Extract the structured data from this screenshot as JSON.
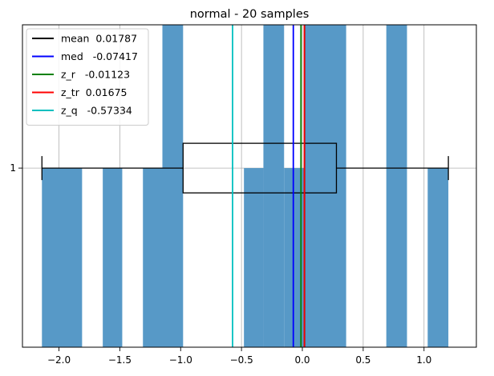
{
  "chart_data": {
    "type": "histogram-boxplot",
    "title": "normal - 20 samples",
    "xlim": [
      -2.3,
      1.43
    ],
    "ylim": [
      0,
      1.8
    ],
    "xticks": [
      -2.0,
      -1.5,
      -1.0,
      -0.5,
      0.0,
      0.5,
      1.0
    ],
    "xtick_labels": [
      "−2.0",
      "−1.5",
      "−1.0",
      "−0.5",
      "0.0",
      "0.5",
      "1.0"
    ],
    "yticks": [
      1
    ],
    "ytick_labels": [
      "1"
    ],
    "grid": true,
    "histogram": {
      "color": "#5799c7",
      "bars": [
        {
          "x0": -2.14,
          "x1": -1.81,
          "count": 1
        },
        {
          "x0": -1.64,
          "x1": -1.48,
          "count": 1
        },
        {
          "x0": -1.31,
          "x1": -1.15,
          "count": 1
        },
        {
          "x0": -1.15,
          "x1": -0.98,
          "count": 2
        },
        {
          "x0": -0.48,
          "x1": -0.32,
          "count": 1
        },
        {
          "x0": -0.32,
          "x1": -0.15,
          "count": 2
        },
        {
          "x0": -0.15,
          "x1": 0.02,
          "count": 1
        },
        {
          "x0": 0.02,
          "x1": 0.36,
          "count": 2
        },
        {
          "x0": 0.69,
          "x1": 0.86,
          "count": 2
        },
        {
          "x0": 1.03,
          "x1": 1.2,
          "count": 1
        }
      ]
    },
    "boxplot": {
      "whisker_low": -2.14,
      "q1": -0.98,
      "median": -0.07417,
      "q3": 0.28,
      "whisker_high": 1.2,
      "position": 1
    },
    "lines": [
      {
        "name": "mean",
        "label": "mean  0.01787",
        "value": 0.01787,
        "color": "#000000"
      },
      {
        "name": "med",
        "label": "med   -0.07417",
        "value": -0.07417,
        "color": "#0000ff"
      },
      {
        "name": "z_r",
        "label": "z_r   -0.01123",
        "value": -0.01123,
        "color": "#008000"
      },
      {
        "name": "z_tr",
        "label": "z_tr  0.01675",
        "value": 0.01675,
        "color": "#ff0000"
      },
      {
        "name": "z_q",
        "label": "z_q   -0.57334",
        "value": -0.57334,
        "color": "#00bfbf"
      }
    ],
    "legend_position": "top-left"
  }
}
